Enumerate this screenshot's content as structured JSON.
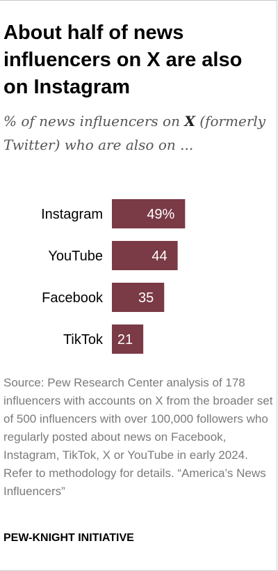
{
  "title": "About half of news influencers on X are also on Instagram",
  "subtitle": {
    "before": "% of news influencers on ",
    "emphasis": "X",
    "after": " (formerly Twitter) who are also on ..."
  },
  "chart_data": {
    "type": "bar",
    "orientation": "horizontal",
    "categories": [
      "Instagram",
      "YouTube",
      "Facebook",
      "TikTok"
    ],
    "values": [
      49,
      44,
      35,
      21
    ],
    "value_labels": [
      "49%",
      "44",
      "35",
      "21"
    ],
    "bar_color": "#7a3a46",
    "label_color": "#ffffff"
  },
  "source": "Source: Pew Research Center analysis of 178 influencers with accounts on X from the broader set of 500 influencers with over 100,000 followers who regularly posted about news on Facebook, Instagram, TikTok, X or YouTube in early 2024. Refer to methodology for details. “America’s News Influencers”",
  "brand": "PEW-KNIGHT INITIATIVE"
}
